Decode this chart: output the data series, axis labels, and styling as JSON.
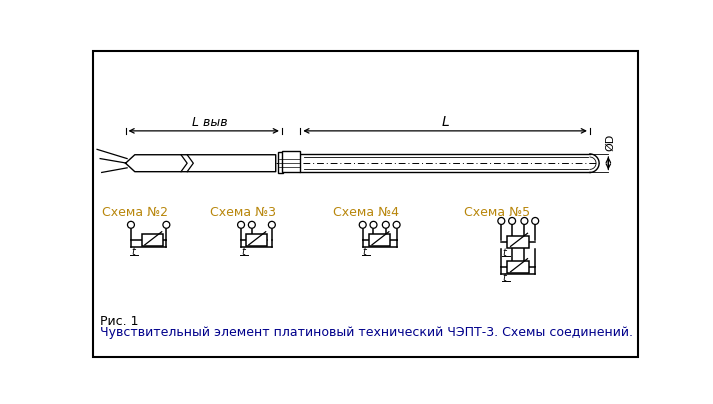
{
  "bg_color": "#ebebeb",
  "border_color": "#000000",
  "drawing_color": "#000000",
  "scheme_label_color": "#b8860b",
  "caption_color": "#00008b",
  "fig_caption_color": "#000000",
  "schema_labels": [
    "Схема №2",
    "Схема №3",
    "Схема №4",
    "Схема №5"
  ],
  "fig_caption": "Рис. 1",
  "main_caption": "Чувствительный элемент платиновый технический ЧЭПТ-3. Схемы соединений.",
  "dim_L_vyv": "L выв",
  "dim_L": "L",
  "dim_D": "ØD"
}
